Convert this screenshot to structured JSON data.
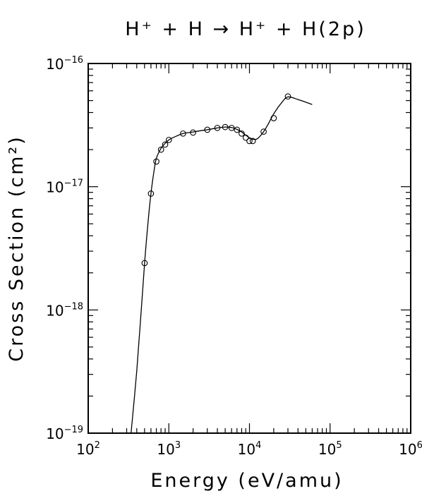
{
  "chart_data": {
    "type": "scatter",
    "title": "H⁺ + H → H⁺ + H(2p)",
    "xlabel": "Energy (eV/amu)",
    "ylabel": "Cross Section (cm²)",
    "x_scale": "log",
    "y_scale": "log",
    "xlim": [
      100,
      1000000
    ],
    "ylim": [
      1e-19,
      1e-16
    ],
    "grid": false,
    "x_ticks": [
      {
        "value": 100,
        "base": "10",
        "exp": "2"
      },
      {
        "value": 1000,
        "base": "10",
        "exp": "3"
      },
      {
        "value": 10000,
        "base": "10",
        "exp": "4"
      },
      {
        "value": 100000,
        "base": "10",
        "exp": "5"
      },
      {
        "value": 1000000,
        "base": "10",
        "exp": "6"
      }
    ],
    "y_ticks": [
      {
        "value": 1e-16,
        "base": "10",
        "exp": "−16"
      },
      {
        "value": 1e-17,
        "base": "10",
        "exp": "−17"
      },
      {
        "value": 1e-18,
        "base": "10",
        "exp": "−18"
      },
      {
        "value": 1e-19,
        "base": "10",
        "exp": "−19"
      }
    ],
    "series": [
      {
        "kind": "points",
        "x": [
          500,
          600,
          700,
          800,
          900,
          1000,
          1500,
          2000,
          3000,
          4000,
          5000,
          6000,
          7000,
          8000,
          9000,
          10000,
          11000,
          15000,
          20000,
          30000
        ],
        "y": [
          2.4e-18,
          8.8e-18,
          1.6e-17,
          2e-17,
          2.2e-17,
          2.4e-17,
          2.7e-17,
          2.75e-17,
          2.9e-17,
          3e-17,
          3.05e-17,
          3e-17,
          2.9e-17,
          2.7e-17,
          2.5e-17,
          2.35e-17,
          2.35e-17,
          2.8e-17,
          3.6e-17,
          5.4e-17
        ]
      },
      {
        "kind": "fit-curve",
        "x": [
          340,
          400,
          450,
          500,
          550,
          600,
          650,
          700,
          800,
          900,
          1000,
          1200,
          1500,
          2000,
          2500,
          3000,
          4000,
          5000,
          6000,
          7000,
          8000,
          9000,
          10000,
          11000,
          12000,
          13000,
          15000,
          17000,
          20000,
          25000,
          30000,
          40000,
          50000,
          60000
        ],
        "y": [
          1e-19,
          3.2e-19,
          9e-19,
          2.4e-18,
          5e-18,
          8.8e-18,
          1.3e-17,
          1.7e-17,
          2.05e-17,
          2.25e-17,
          2.4e-17,
          2.55e-17,
          2.7e-17,
          2.78e-17,
          2.85e-17,
          2.9e-17,
          3e-17,
          3.05e-17,
          3.02e-17,
          2.92e-17,
          2.78e-17,
          2.62e-17,
          2.5e-17,
          2.43e-17,
          2.42e-17,
          2.5e-17,
          2.8e-17,
          3.2e-17,
          3.9e-17,
          4.8e-17,
          5.35e-17,
          5.1e-17,
          4.85e-17,
          4.65e-17
        ]
      }
    ]
  }
}
